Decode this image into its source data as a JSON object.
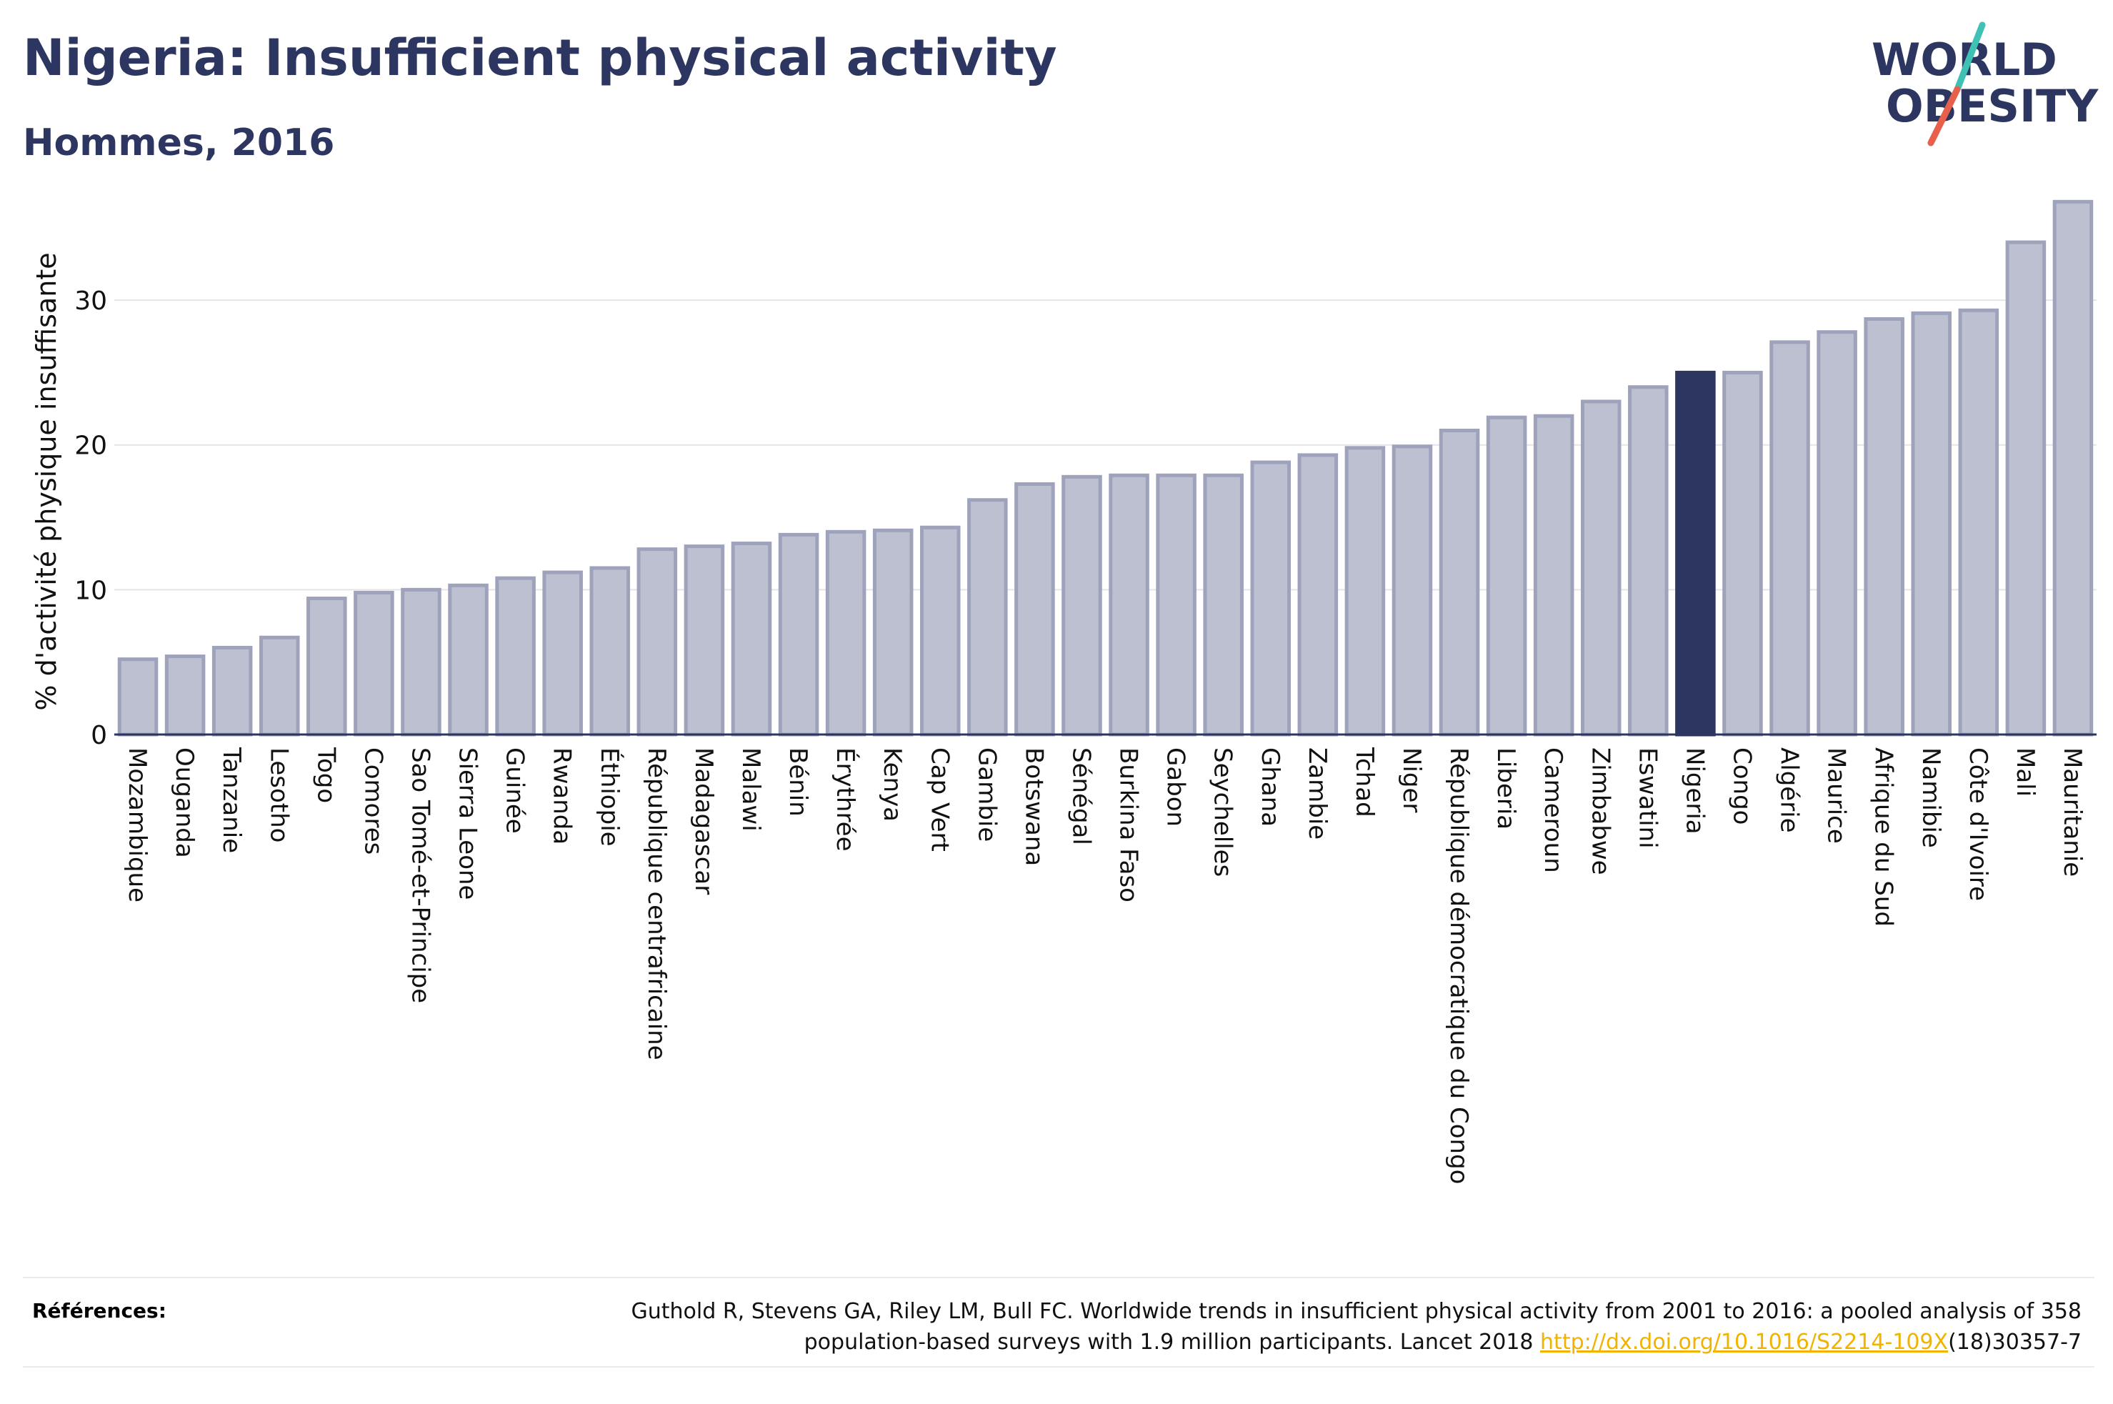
{
  "header": {
    "title": "Nigeria: Insufficient physical activity",
    "subtitle": "Hommes, 2016"
  },
  "logo": {
    "line1": "WORLD",
    "line2": "OBESITY",
    "icon": "world-obesity-logo"
  },
  "colors": {
    "bar": "#bcc0d0",
    "bar_border": "#9ea3bb",
    "highlight": "#2d3561",
    "text": "#2d3561",
    "link": "#f0b400"
  },
  "chart_data": {
    "type": "bar",
    "ylabel": "% d'activité physique insuffisante",
    "xlabel": "",
    "ylim": [
      0,
      38
    ],
    "yticks": [
      0,
      10,
      20,
      30
    ],
    "grid": true,
    "highlight": "Nigeria",
    "categories": [
      "Mozambique",
      "Ouganda",
      "Tanzanie",
      "Lesotho",
      "Togo",
      "Comores",
      "Sao Tomé-et-Principe",
      "Sierra Leone",
      "Guinée",
      "Rwanda",
      "Éthiopie",
      "République centrafricaine",
      "Madagascar",
      "Malawi",
      "Bénin",
      "Érythrée",
      "Kenya",
      "Cap Vert",
      "Gambie",
      "Botswana",
      "Sénégal",
      "Burkina Faso",
      "Gabon",
      "Seychelles",
      "Ghana",
      "Zambie",
      "Tchad",
      "Niger",
      "République démocratique du Congo",
      "Liberia",
      "Cameroun",
      "Zimbabwe",
      "Eswatini",
      "Nigeria",
      "Congo",
      "Algérie",
      "Maurice",
      "Afrique du Sud",
      "Namibie",
      "Côte d'Ivoire",
      "Mali",
      "Mauritanie"
    ],
    "values": [
      5.2,
      5.4,
      6.0,
      6.7,
      9.4,
      9.8,
      10.0,
      10.3,
      10.8,
      11.2,
      11.5,
      12.8,
      13.0,
      13.2,
      13.8,
      14.0,
      14.1,
      14.3,
      16.2,
      17.3,
      17.8,
      17.9,
      17.9,
      17.9,
      18.8,
      19.3,
      19.8,
      19.9,
      21.0,
      21.9,
      22.0,
      23.0,
      24.0,
      25.0,
      25.0,
      27.1,
      27.8,
      28.7,
      29.1,
      29.3,
      34.0,
      36.8
    ]
  },
  "references": {
    "label": "Références:",
    "line1": "Guthold R, Stevens GA, Riley LM, Bull FC. Worldwide trends in insufficient physical activity from 2001 to 2016: a pooled analysis of 358",
    "line2_before": "population-based surveys with 1.9 million participants. Lancet 2018 ",
    "link": "http://dx.doi.org/10.1016/S2214-109X",
    "line2_after": "(18)30357-7"
  }
}
